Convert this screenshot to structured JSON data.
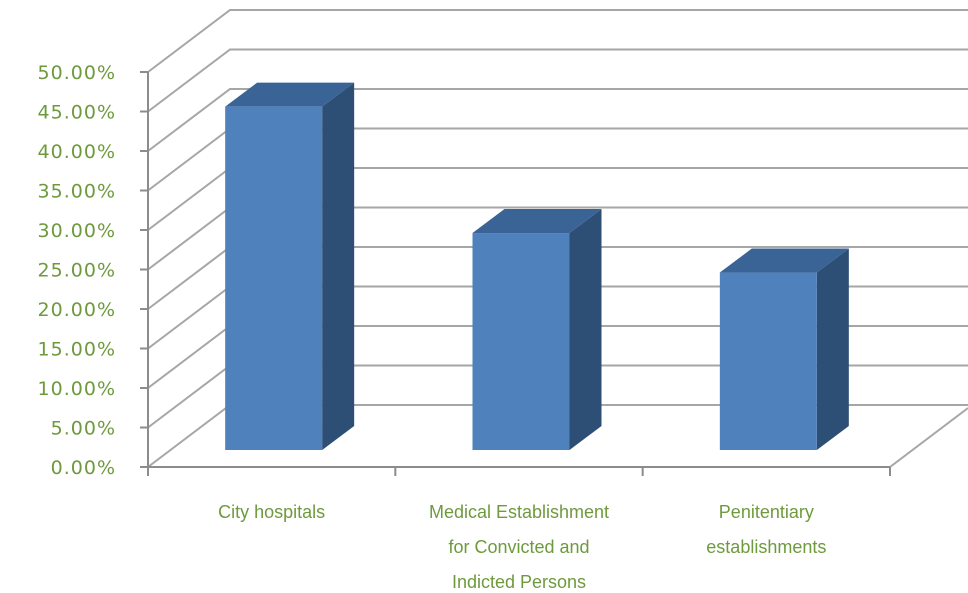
{
  "chart_data": {
    "type": "bar",
    "style": "3d-column",
    "title": "",
    "xlabel": "",
    "ylabel": "",
    "categories": [
      [
        "City hospitals"
      ],
      [
        "Medical Establishment",
        "for Convicted and",
        "Indicted Persons"
      ],
      [
        "Penitentiary",
        "establishments"
      ]
    ],
    "values": [
      0.465,
      0.305,
      0.255
    ],
    "ylim": [
      0,
      0.5
    ],
    "y_ticks": [
      "0.00%",
      "5.00%",
      "10.00%",
      "15.00%",
      "20.00%",
      "25.00%",
      "30.00%",
      "35.00%",
      "40.00%",
      "45.00%",
      "50.00%"
    ],
    "grid": true,
    "legend": "none",
    "colors": {
      "bar_front": "#4f81bd",
      "bar_side": "#2e4f75",
      "bar_top": "#3b6496",
      "grid": "#a6a6a6",
      "axis": "#8c8c8c",
      "text": "#6e9a3d"
    }
  }
}
